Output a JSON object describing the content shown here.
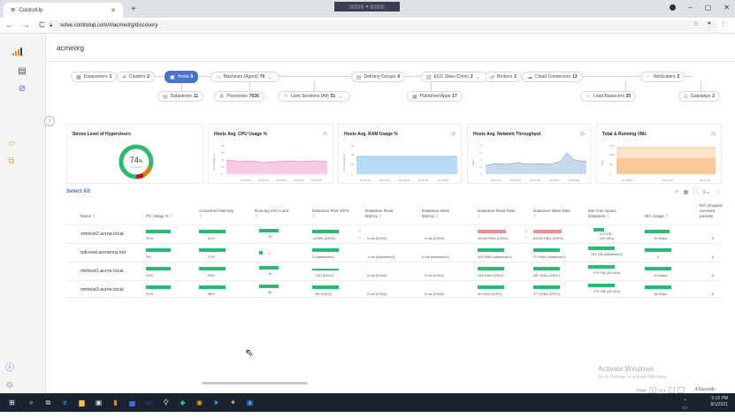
{
  "browser": {
    "tab_title": "ControlUp",
    "url": "solve.controlup.com/#/acmeorg/discovery",
    "remote_label": "▯▯▯▯▯▯ ✦ ▯▯▯▯▯▯"
  },
  "app": {
    "org_name": "acmeorg",
    "accent_color": "#4a73c9"
  },
  "topology": {
    "datacenters": {
      "label": "Datacenters",
      "count": "1"
    },
    "clusters": {
      "label": "Clusters",
      "count": "2"
    },
    "hosts": {
      "label": "Hosts",
      "count": "8"
    },
    "machines": {
      "label": "Machines (Agent)",
      "count": "70"
    },
    "delivery_groups": {
      "label": "Delivery Groups",
      "count": "6"
    },
    "euc_sites": {
      "label": "EUC Sites (Citrix)",
      "count": "2"
    },
    "brokers": {
      "label": "Brokers",
      "count": "2"
    },
    "cloud_connectors": {
      "label": "Cloud Connectors",
      "count": "13"
    },
    "netscalers": {
      "label": "NetScalers",
      "count": "2"
    },
    "datastores": {
      "label": "Datastores",
      "count": "11"
    },
    "processes": {
      "label": "Processes",
      "count": "7636"
    },
    "user_sessions": {
      "label": "User Sessions (All)",
      "count": "51"
    },
    "published_apps": {
      "label": "Published Apps",
      "count": "17"
    },
    "load_balancers": {
      "label": "Load Balancers",
      "count": "20"
    },
    "gateways": {
      "label": "Gateways",
      "count": "2"
    }
  },
  "widgets": {
    "stress": {
      "title": "Stress Level of Hypervisors",
      "value": "74",
      "unit": "%",
      "sub": "No stress"
    },
    "cpu": {
      "title": "Hosts Avg. CPU Usage %",
      "ylabel": "Percentage %",
      "yticks": [
        "40",
        "30",
        "20",
        "10",
        "0"
      ],
      "xticks": [
        "20:16:30",
        "20:19:15",
        "20:16:27",
        "20:16:47",
        "20:16:59"
      ]
    },
    "ram": {
      "title": "Hosts Avg. RAM Usage %",
      "ylabel": "Percentage %",
      "yticks": [
        "50",
        "40",
        "20",
        "0"
      ],
      "xticks": [
        "20:16:15",
        "20:16:00",
        "20:15:20",
        "20:16:07",
        "20:16:23"
      ]
    },
    "net": {
      "title": "Hosts Avg. Network Throughput",
      "ylabel": "Mbps",
      "yticks": [
        "8",
        "6",
        "4",
        "2",
        "0"
      ],
      "xticks": [
        "20:16:11",
        "20:16:40",
        "20:17:21",
        "20:16:27",
        "20:16:23"
      ]
    },
    "vms": {
      "title": "Total & Running VMs",
      "ylabel": "VMs",
      "yticks": [
        "175",
        "100",
        "50",
        "0"
      ],
      "xticks": [
        "20:20:20",
        "20:15:20",
        "20:16:40"
      ]
    }
  },
  "table": {
    "select_all": "Select All",
    "headers": [
      "Name",
      "PU Usage %",
      "Consumed Memory",
      "Running VM Count",
      "Datastore R/W IOPS",
      "Datastore Read latency",
      "Datastore Write latency",
      "Datastore Read Rate",
      "Datastore Write Rate",
      "Min Free Space Datastore",
      "NIC Usage",
      "NIC dropped received packets"
    ],
    "rows": [
      {
        "name": "vmhost2.acme.local",
        "cpu": "30%",
        "mem": "61%",
        "vms": "16",
        "iops": "-40398 (DS01)",
        "rlat": "0 ms (DS02)",
        "wlat": "0 ms (DS02)",
        "rrate": "46446 KB/s (DS01)",
        "wrate": "81156 KB/s (DS01)",
        "free": "279 GB (vD-vRo)",
        "nic": "15 Mbps",
        "drop": "0"
      },
      {
        "name": "rpil-esxi.acmeorg.net",
        "cpu": "3%",
        "mem": "27%",
        "vms": "1",
        "iops": "5 (datastore1)",
        "rlat": "1 ms (datastore1)",
        "wlat": "0 ms (datastore1)",
        "rrate": "452 KB/s (datastore1)",
        "wrate": "37 KB/s (datastore1)",
        "free": "191 GB (datastore1)",
        "nic": "0",
        "drop": "0"
      },
      {
        "name": "vmhost1.acme.local",
        "cpu": "24%",
        "mem": "59%",
        "vms": "16",
        "iops": "142 (DS01)",
        "rlat": "0 ms (DS02)",
        "wlat": "0 ms (DS01)",
        "rrate": "198 KB/s (DS01)",
        "wrate": "487 KB/s (DS01)",
        "free": "279 GB (vD-vRo)",
        "nic": "22 Mbps",
        "drop": "0"
      },
      {
        "name": "vmhost3.acme.local",
        "cpu": "22%",
        "mem": "58%",
        "vms": "40",
        "iops": "85 (DS01)",
        "rlat": "0 ms (DS02)",
        "wlat": "0 ms (DS02)",
        "rrate": "49 KB/s (DS01)",
        "wrate": "477 KB/s (DS01)",
        "free": "279 GB (vD-vRo)",
        "nic": "18 Mbps",
        "drop": "0"
      }
    ]
  },
  "footer": {
    "activate_title": "Activate Windows",
    "activate_sub": "Go to Settings to activate Windows.",
    "page_label": "Page",
    "page_num": "1",
    "page_of": "of 1",
    "records": "4 Records"
  },
  "taskbar": {
    "time": "5:16 PM",
    "date": "8/1/2021"
  }
}
